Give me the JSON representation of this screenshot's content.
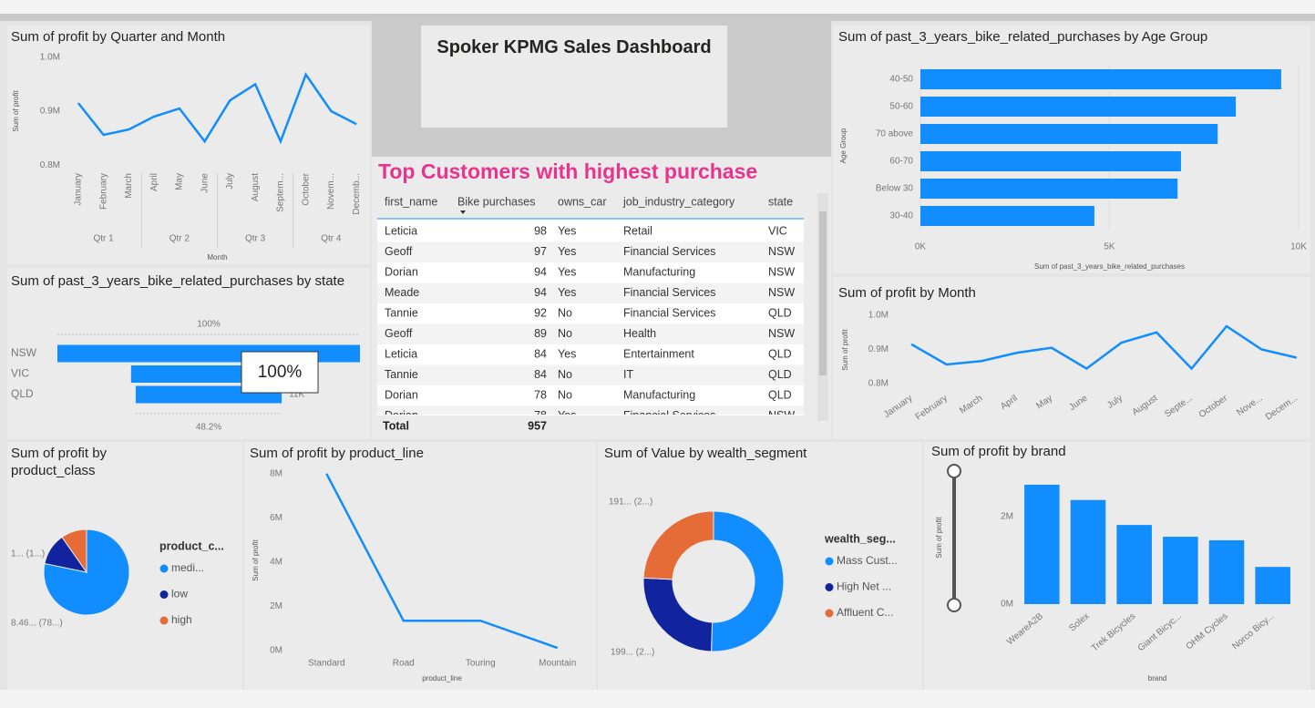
{
  "dashboard_title": "Spoker KPMG Sales Dashboard",
  "table": {
    "title": "Top Customers with highest purchase",
    "columns": [
      "first_name",
      "Bike purchases",
      "owns_car",
      "job_industry_category",
      "state"
    ],
    "rows": [
      [
        "Leticia",
        98,
        "Yes",
        "Retail",
        "VIC"
      ],
      [
        "Geoff",
        97,
        "Yes",
        "Financial Services",
        "NSW"
      ],
      [
        "Dorian",
        94,
        "Yes",
        "Manufacturing",
        "NSW"
      ],
      [
        "Meade",
        94,
        "Yes",
        "Financial Services",
        "NSW"
      ],
      [
        "Tannie",
        92,
        "No",
        "Financial Services",
        "QLD"
      ],
      [
        "Geoff",
        89,
        "No",
        "Health",
        "NSW"
      ],
      [
        "Leticia",
        84,
        "Yes",
        "Entertainment",
        "QLD"
      ],
      [
        "Tannie",
        84,
        "No",
        "IT",
        "QLD"
      ],
      [
        "Dorian",
        78,
        "No",
        "Manufacturing",
        "QLD"
      ],
      [
        "Dorian",
        78,
        "Yes",
        "Financial Services",
        "NSW"
      ]
    ],
    "total_label": "Total",
    "total": 957
  },
  "chart_data": [
    {
      "type": "line",
      "title": "Sum of profit by Quarter and Month",
      "x_label": "Month",
      "y_label": "Sum of profit",
      "color": "#118dff",
      "categories": [
        "January",
        "February",
        "March",
        "April",
        "May",
        "June",
        "July",
        "August",
        "Septem...",
        "October",
        "Novem...",
        "Decemb..."
      ],
      "quarters": [
        "Qtr 1",
        "Qtr 2",
        "Qtr 3",
        "Qtr 4"
      ],
      "values": [
        915000,
        856000,
        866000,
        890000,
        905000,
        844000,
        920000,
        950000,
        844000,
        968000,
        900000,
        876000
      ],
      "ylim": [
        780000,
        1020000
      ],
      "yticks": [
        {
          "value": 800000,
          "label": "0.8M"
        },
        {
          "value": 900000,
          "label": "0.9M"
        },
        {
          "value": 1000000,
          "label": "1.0M"
        }
      ]
    },
    {
      "type": "hbar",
      "title": "Sum of past_3_years_bike_related_purchases by Age Group",
      "x_label": "Sum of past_3_years_bike_related_purchases",
      "y_label": "Age Group",
      "color": "#118dff",
      "categories": [
        "40-50",
        "50-60",
        "70 above",
        "60-70",
        "Below 30",
        "30-40"
      ],
      "values": [
        9540,
        8340,
        7860,
        6890,
        6800,
        4600
      ],
      "xlim": [
        0,
        10000
      ],
      "xticks": [
        {
          "value": 0,
          "label": "0K"
        },
        {
          "value": 5000,
          "label": "5K"
        },
        {
          "value": 10000,
          "label": "10K"
        }
      ]
    },
    {
      "type": "funnel",
      "title": "Sum of past_3_years_bike_related_purchases by state",
      "color": "#118dff",
      "categories": [
        "NSW",
        "VIC",
        "QLD"
      ],
      "values": [
        22800,
        11700,
        11000
      ],
      "value_labels": [
        null,
        null,
        "11K"
      ],
      "top_label": "100%",
      "bottom_label": "48.2%",
      "tooltip": "100%"
    },
    {
      "type": "line",
      "title": "Sum of profit by Month",
      "y_label": "Sum of profit",
      "color": "#118dff",
      "categories": [
        "January",
        "February",
        "March",
        "April",
        "May",
        "June",
        "July",
        "August",
        "Septe...",
        "October",
        "Nove...",
        "Decem..."
      ],
      "values": [
        915000,
        856000,
        866000,
        890000,
        905000,
        844000,
        920000,
        950000,
        844000,
        968000,
        900000,
        876000
      ],
      "ylim": [
        780000,
        1020000
      ],
      "yticks": [
        {
          "value": 800000,
          "label": "0.8M"
        },
        {
          "value": 900000,
          "label": "0.9M"
        },
        {
          "value": 1000000,
          "label": "1.0M"
        }
      ]
    },
    {
      "type": "pie",
      "title": "Sum of profit by product_class",
      "legend_title": "product_c...",
      "categories": [
        "medi...",
        "low",
        "high"
      ],
      "colors": [
        "#118dff",
        "#12239e",
        "#e66c37"
      ],
      "values": [
        8460000,
        1300000,
        1050000
      ],
      "value_labels": [
        "8.46... (78...)",
        "1... (1...)",
        null
      ]
    },
    {
      "type": "line",
      "title": "Sum of profit by product_line",
      "x_label": "product_line",
      "y_label": "Sum of profit",
      "color": "#118dff",
      "categories": [
        "Standard",
        "Road",
        "Touring",
        "Mountain"
      ],
      "values": [
        8000000,
        1350000,
        1350000,
        120000
      ],
      "ylim": [
        0,
        8200000
      ],
      "yticks": [
        {
          "value": 0,
          "label": "0M"
        },
        {
          "value": 2000000,
          "label": "2M"
        },
        {
          "value": 4000000,
          "label": "4M"
        },
        {
          "value": 6000000,
          "label": "6M"
        },
        {
          "value": 8000000,
          "label": "8M"
        }
      ]
    },
    {
      "type": "donut",
      "title": "Sum of Value by wealth_segment",
      "legend_title": "wealth_seg...",
      "categories": [
        "Mass Cust...",
        "High Net ...",
        "Affluent C..."
      ],
      "colors": [
        "#118dff",
        "#12239e",
        "#e66c37"
      ],
      "values": [
        398,
        199,
        191
      ],
      "value_labels": [
        null,
        "199... (2...)",
        "191... (2...)"
      ]
    },
    {
      "type": "bar",
      "title": "Sum of profit by brand",
      "x_label": "brand",
      "y_label": "Sum of profit",
      "color": "#118dff",
      "categories": [
        "WeareA2B",
        "Solex",
        "Trek Bicycles",
        "Giant Bicyc...",
        "OHM Cycles",
        "Norco Bicy..."
      ],
      "values": [
        2730000,
        2380000,
        1810000,
        1540000,
        1460000,
        850000
      ],
      "ylim": [
        0,
        3000000
      ],
      "yticks": [
        {
          "value": 0,
          "label": "0M"
        },
        {
          "value": 2000000,
          "label": "2M"
        }
      ]
    }
  ]
}
